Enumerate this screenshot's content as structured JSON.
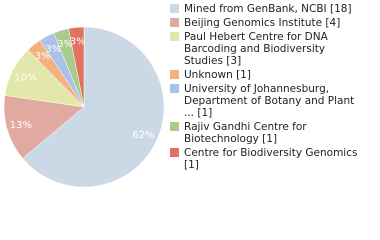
{
  "chart_data": {
    "type": "pie",
    "categories": [
      "Mined from GenBank, NCBI [18]",
      "Beijing Genomics Institute [4]",
      "Paul Hebert Centre for DNA Barcoding and Biodiversity Studies [3]",
      "Unknown [1]",
      "University of Johannesburg, Department of Botany and Plant ... [1]",
      "Rajiv Gandhi Centre for Biotechnology [1]",
      "Centre for Biodiversity Genomics [1]"
    ],
    "values": [
      62,
      13,
      10,
      3,
      3,
      3,
      3
    ],
    "value_labels": [
      "62%",
      "13%",
      "10%",
      "3%",
      "3%",
      "3%",
      "3%"
    ],
    "colors": [
      "#cbd8e6",
      "#e2a9a1",
      "#e2e8aa",
      "#f2b27e",
      "#a9c2e8",
      "#a8cc8c",
      "#e0735f"
    ]
  }
}
